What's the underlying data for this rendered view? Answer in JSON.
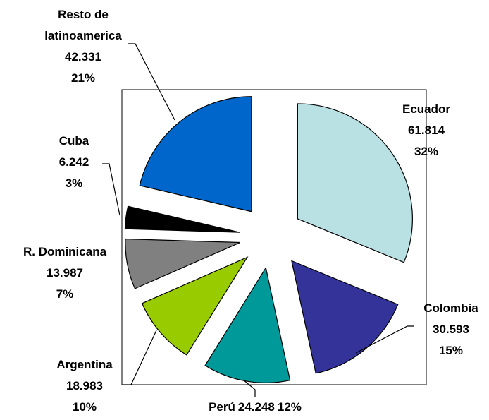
{
  "chart_data": {
    "type": "pie",
    "categories": [
      "Ecuador",
      "Colombia",
      "Perú",
      "Argentina",
      "R. Dominicana",
      "Cuba",
      "Resto de latinoamerica"
    ],
    "values": [
      61814,
      30593,
      24248,
      18983,
      13987,
      6242,
      42331
    ],
    "value_labels": [
      "61.814",
      "30.593",
      "24.248",
      "18.983",
      "13.987",
      "6.242",
      "42.331"
    ],
    "percentages": [
      32,
      15,
      12,
      10,
      7,
      3,
      21
    ],
    "percentage_labels": [
      "32%",
      "15%",
      "12%",
      "10%",
      "7%",
      "3%",
      "21%"
    ],
    "colors": [
      "#b9e0e3",
      "#333399",
      "#009999",
      "#99cc00",
      "#808080",
      "#000000",
      "#0066cc"
    ]
  }
}
